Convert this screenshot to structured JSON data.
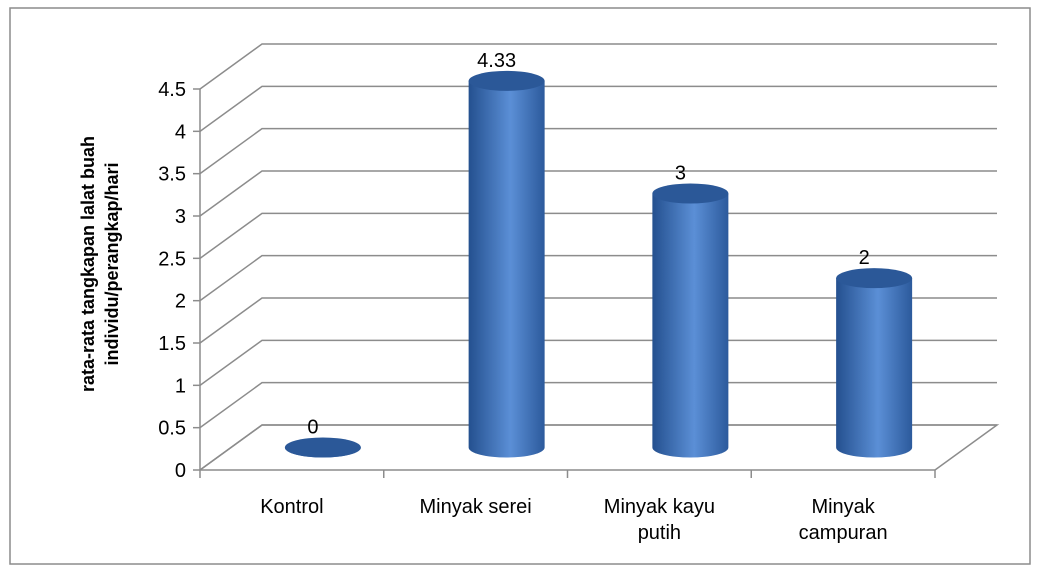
{
  "chart_data": {
    "type": "bar3d",
    "y_label": "rata-rata tangkapan lalat buah individu/perangkap/hari",
    "categories": [
      "Kontrol",
      "Minyak serei",
      "Minyak kayu putih",
      "Minyak campuran"
    ],
    "values": [
      0,
      4.33,
      3,
      2
    ],
    "color": "#3f73bf",
    "ylim": [
      0,
      4.5
    ],
    "yticks": [
      0,
      0.5,
      1,
      1.5,
      2,
      2.5,
      3,
      3.5,
      4,
      4.5
    ],
    "grid": true
  }
}
